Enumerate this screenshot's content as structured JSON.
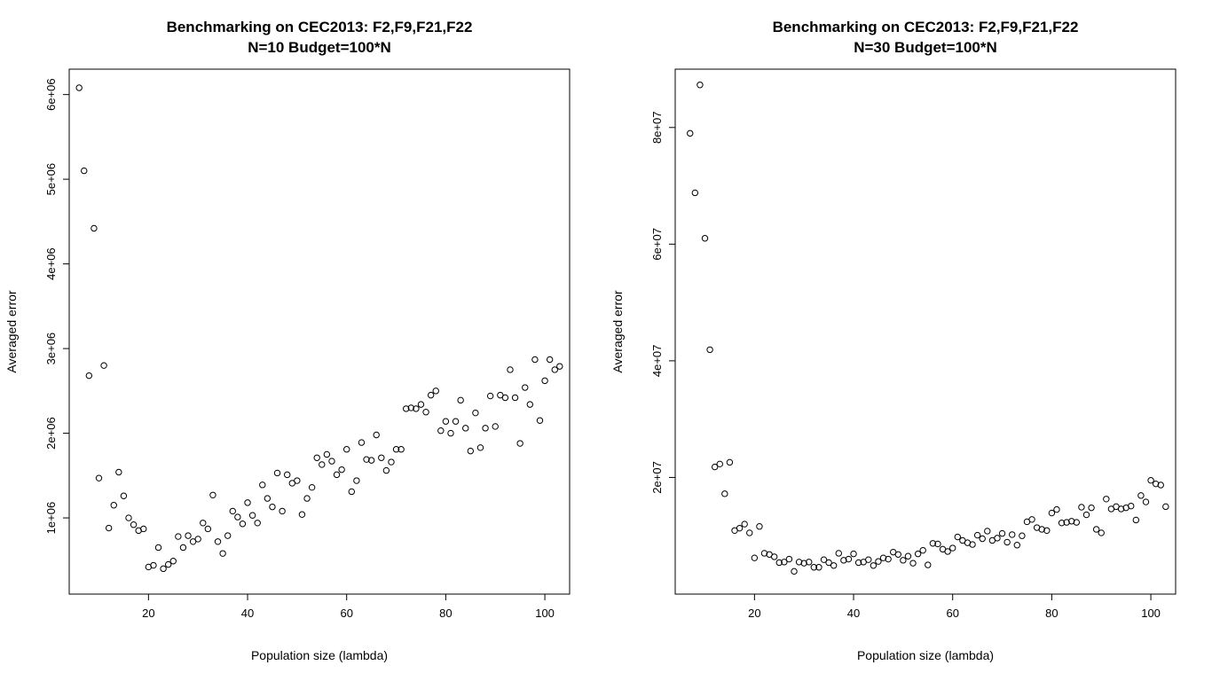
{
  "chart_data": [
    {
      "type": "scatter",
      "title": "Benchmarking on CEC2013: F2,F9,F21,F22",
      "subtitle": "N=10 Budget=100*N",
      "xlabel": "Population size (lambda)",
      "ylabel": "Averaged error",
      "xlim": [
        4,
        105
      ],
      "ylim": [
        100000,
        6300000
      ],
      "xticks": [
        20,
        40,
        60,
        80,
        100
      ],
      "xtick_labels": [
        "20",
        "40",
        "60",
        "80",
        "100"
      ],
      "yticks": [
        1000000,
        2000000,
        3000000,
        4000000,
        5000000,
        6000000
      ],
      "ytick_labels": [
        "1e+06",
        "2e+06",
        "3e+06",
        "4e+06",
        "5e+06",
        "6e+06"
      ],
      "grid": false,
      "x": [
        6,
        7,
        8,
        9,
        10,
        11,
        12,
        13,
        14,
        15,
        16,
        17,
        18,
        19,
        20,
        21,
        22,
        23,
        24,
        25,
        26,
        27,
        28,
        29,
        30,
        31,
        32,
        33,
        34,
        35,
        36,
        37,
        38,
        39,
        40,
        41,
        42,
        43,
        44,
        45,
        46,
        47,
        48,
        49,
        50,
        51,
        52,
        53,
        54,
        55,
        56,
        57,
        58,
        59,
        60,
        61,
        62,
        63,
        64,
        65,
        66,
        67,
        68,
        69,
        70,
        71,
        72,
        73,
        74,
        75,
        76,
        77,
        78,
        79,
        80,
        81,
        82,
        83,
        84,
        85,
        86,
        87,
        88,
        89,
        90,
        91,
        92,
        93,
        94,
        95,
        96,
        97,
        98,
        99,
        100,
        101,
        102,
        103
      ],
      "y": [
        6080000,
        5100000,
        2680000,
        4420000,
        1470000,
        2800000,
        880000,
        1150000,
        1540000,
        1260000,
        1000000,
        920000,
        850000,
        870000,
        420000,
        440000,
        650000,
        400000,
        450000,
        490000,
        780000,
        650000,
        790000,
        720000,
        750000,
        940000,
        870000,
        1270000,
        720000,
        580000,
        790000,
        1080000,
        1010000,
        930000,
        1180000,
        1030000,
        940000,
        1390000,
        1230000,
        1130000,
        1530000,
        1080000,
        1510000,
        1410000,
        1440000,
        1040000,
        1230000,
        1360000,
        1710000,
        1630000,
        1750000,
        1670000,
        1510000,
        1570000,
        1810000,
        1310000,
        1440000,
        1890000,
        1690000,
        1680000,
        1980000,
        1710000,
        1560000,
        1660000,
        1810000,
        1810000,
        2290000,
        2300000,
        2290000,
        2340000,
        2250000,
        2450000,
        2500000,
        2030000,
        2140000,
        2000000,
        2140000,
        2390000,
        2060000,
        1790000,
        2240000,
        1830000,
        2060000,
        2440000,
        2080000,
        2450000,
        2420000,
        2750000,
        2420000,
        1880000,
        2540000,
        2340000,
        2870000,
        2150000,
        2620000,
        2870000,
        2750000,
        2790000
      ]
    },
    {
      "type": "scatter",
      "title": "Benchmarking on CEC2013: F2,F9,F21,F22",
      "subtitle": "N=30 Budget=100*N",
      "xlabel": "Population size (lambda)",
      "ylabel": "Averaged error",
      "xlim": [
        4,
        105
      ],
      "ylim": [
        0,
        90000000
      ],
      "xticks": [
        20,
        40,
        60,
        80,
        100
      ],
      "xtick_labels": [
        "20",
        "40",
        "60",
        "80",
        "100"
      ],
      "yticks": [
        20000000,
        40000000,
        60000000,
        80000000
      ],
      "ytick_labels": [
        "2e+07",
        "4e+07",
        "6e+07",
        "8e+07"
      ],
      "grid": false,
      "x": [
        7,
        8,
        9,
        10,
        11,
        12,
        13,
        14,
        15,
        16,
        17,
        18,
        19,
        20,
        21,
        22,
        23,
        24,
        25,
        26,
        27,
        28,
        29,
        30,
        31,
        32,
        33,
        34,
        35,
        36,
        37,
        38,
        39,
        40,
        41,
        42,
        43,
        44,
        45,
        46,
        47,
        48,
        49,
        50,
        51,
        52,
        53,
        54,
        55,
        56,
        57,
        58,
        59,
        60,
        61,
        62,
        63,
        64,
        65,
        66,
        67,
        68,
        69,
        70,
        71,
        72,
        73,
        74,
        75,
        76,
        77,
        78,
        79,
        80,
        81,
        82,
        83,
        84,
        85,
        86,
        87,
        88,
        89,
        90,
        91,
        92,
        93,
        94,
        95,
        96,
        97,
        98,
        99,
        100,
        101,
        102,
        103
      ],
      "y": [
        79000000,
        68800000,
        87300000,
        61000000,
        41900000,
        21800000,
        22300000,
        17200000,
        22600000,
        10900000,
        11300000,
        12000000,
        10500000,
        6200000,
        11600000,
        7000000,
        6800000,
        6400000,
        5400000,
        5500000,
        6000000,
        3900000,
        5500000,
        5300000,
        5500000,
        4600000,
        4600000,
        5900000,
        5400000,
        4900000,
        7000000,
        5800000,
        6000000,
        6900000,
        5400000,
        5500000,
        5900000,
        4900000,
        5600000,
        6200000,
        6000000,
        7200000,
        6800000,
        5800000,
        6500000,
        5300000,
        6900000,
        7500000,
        5000000,
        8700000,
        8600000,
        7700000,
        7300000,
        7900000,
        9800000,
        9200000,
        8800000,
        8500000,
        10100000,
        9500000,
        10800000,
        9200000,
        9600000,
        10400000,
        8900000,
        10200000,
        8400000,
        10000000,
        12400000,
        12800000,
        11400000,
        11100000,
        10900000,
        13900000,
        14500000,
        12200000,
        12300000,
        12500000,
        12300000,
        14900000,
        13600000,
        14800000,
        11100000,
        10500000,
        16300000,
        14600000,
        15000000,
        14600000,
        14800000,
        15100000,
        12700000,
        16900000,
        15800000,
        19500000,
        18900000,
        18700000,
        15000000
      ]
    }
  ]
}
